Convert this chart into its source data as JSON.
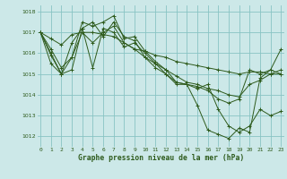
{
  "title": "Graphe pression niveau de la mer (hPa)",
  "background_color": "#cce8e8",
  "line_color": "#2d5a1b",
  "grid_color": "#88c4c4",
  "xlim": [
    -0.3,
    23.3
  ],
  "ylim": [
    1011.5,
    1018.3
  ],
  "yticks": [
    1012,
    1013,
    1014,
    1015,
    1016,
    1017,
    1018
  ],
  "xticks": [
    0,
    1,
    2,
    3,
    4,
    5,
    6,
    7,
    8,
    9,
    10,
    11,
    12,
    13,
    14,
    15,
    16,
    17,
    18,
    19,
    20,
    21,
    22,
    23
  ],
  "series": [
    [
      1017.0,
      1016.7,
      1016.4,
      1016.9,
      1017.0,
      1017.0,
      1016.9,
      1016.8,
      1016.5,
      1016.2,
      1016.1,
      1015.9,
      1015.8,
      1015.6,
      1015.5,
      1015.4,
      1015.3,
      1015.2,
      1015.1,
      1015.0,
      1015.1,
      1015.1,
      1015.0,
      1015.0
    ],
    [
      1017.0,
      1016.2,
      1015.3,
      1015.8,
      1017.0,
      1016.5,
      1017.0,
      1017.3,
      1016.5,
      1016.2,
      1015.8,
      1015.5,
      1015.2,
      1014.9,
      1014.6,
      1014.5,
      1014.3,
      1014.2,
      1014.0,
      1013.9,
      1014.5,
      1014.7,
      1015.0,
      1015.2
    ],
    [
      1017.0,
      1015.9,
      1015.0,
      1015.2,
      1017.2,
      1015.3,
      1017.2,
      1017.0,
      1016.3,
      1016.5,
      1016.0,
      1015.5,
      1015.0,
      1014.6,
      1014.5,
      1014.4,
      1014.2,
      1013.8,
      1013.6,
      1013.8,
      1015.2,
      1015.0,
      1015.2,
      1016.2
    ],
    [
      1017.0,
      1015.5,
      1015.0,
      1016.5,
      1017.2,
      1017.5,
      1016.8,
      1017.5,
      1016.8,
      1016.6,
      1015.8,
      1015.3,
      1015.0,
      1014.5,
      1014.5,
      1014.3,
      1014.5,
      1013.3,
      1012.5,
      1012.2,
      1012.5,
      1013.3,
      1013.0,
      1013.2
    ],
    [
      1017.0,
      1016.0,
      1015.0,
      1015.8,
      1017.5,
      1017.3,
      1017.5,
      1017.8,
      1016.7,
      1016.8,
      1016.1,
      1015.6,
      1015.2,
      1014.6,
      1014.5,
      1013.5,
      1012.3,
      1012.1,
      1011.9,
      1012.4,
      1012.2,
      1014.8,
      1015.2,
      1015.0
    ]
  ]
}
